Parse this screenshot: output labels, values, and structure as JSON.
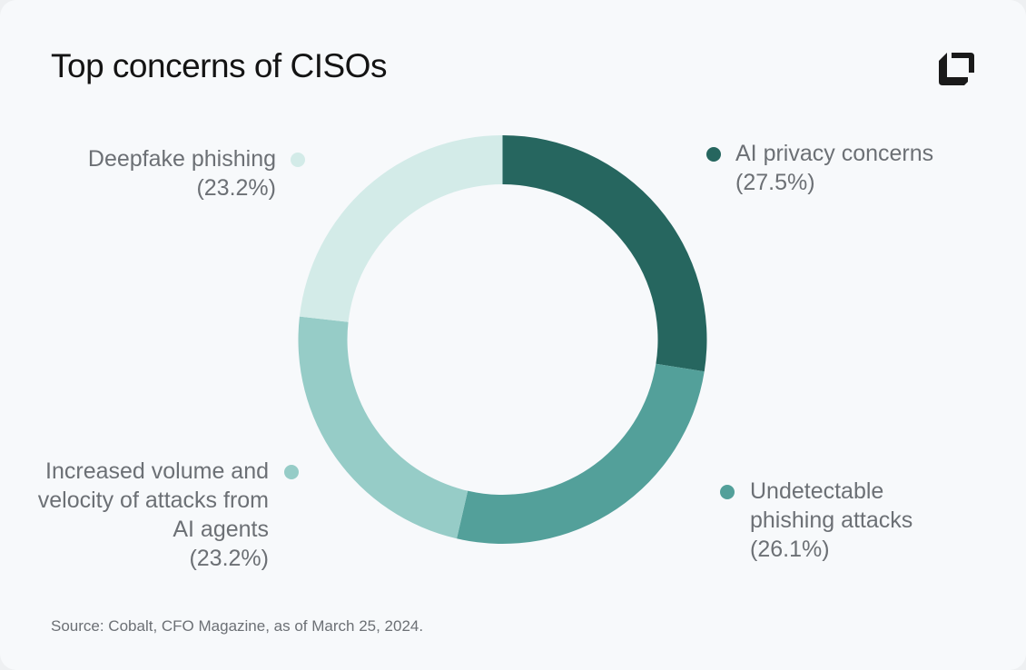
{
  "title": "Top concerns of CISOs",
  "source": "Source: Cobalt, CFO Magazine, as of March 25, 2024.",
  "logo": "Cobalt square logo",
  "chart_data": {
    "type": "pie",
    "variant": "donut",
    "title": "Top concerns of CISOs",
    "legend": "labels around chart",
    "slices": [
      {
        "label": "AI privacy concerns",
        "display": "(27.5%)",
        "value": 27.5,
        "color": "#26665f"
      },
      {
        "label": "Undetectable phishing attacks",
        "display": "(26.1%)",
        "value": 26.1,
        "color": "#53a09a"
      },
      {
        "label": "Increased volume and velocity of attacks from AI agents",
        "display": "(23.2%)",
        "value": 23.2,
        "color": "#96ccc7"
      },
      {
        "label": "Deepfake phishing",
        "display": "(23.2%)",
        "value": 23.2,
        "color": "#d3ebe8"
      }
    ]
  }
}
